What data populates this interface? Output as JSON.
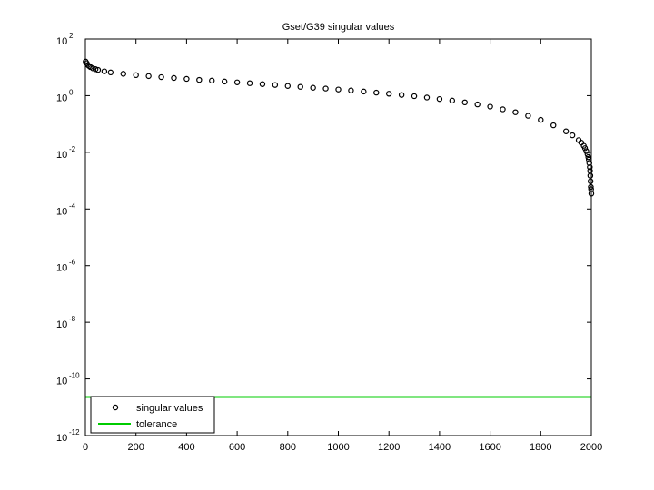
{
  "chart_data": {
    "type": "scatter",
    "title": "Gset/G39 singular values",
    "xlabel": "",
    "ylabel": "",
    "xlim": [
      0,
      2000
    ],
    "ylim": [
      1e-12,
      100
    ],
    "yscale": "log",
    "x_ticks": [
      "0",
      "200",
      "400",
      "600",
      "800",
      "1000",
      "1200",
      "1400",
      "1600",
      "1800",
      "2000"
    ],
    "y_ticks": [
      {
        "base": "10",
        "exp": "2"
      },
      {
        "base": "10",
        "exp": "0"
      },
      {
        "base": "10",
        "exp": "-2"
      },
      {
        "base": "10",
        "exp": "-4"
      },
      {
        "base": "10",
        "exp": "-6"
      },
      {
        "base": "10",
        "exp": "-8"
      },
      {
        "base": "10",
        "exp": "-10"
      },
      {
        "base": "10",
        "exp": "-12"
      }
    ],
    "grid": false,
    "legend_position": "bottom-left",
    "series": [
      {
        "name": "singular values",
        "marker": "circle",
        "color": "#000000",
        "points": [
          [
            1,
            16
          ],
          [
            5,
            14
          ],
          [
            10,
            12
          ],
          [
            15,
            11
          ],
          [
            20,
            10.2
          ],
          [
            30,
            9.2
          ],
          [
            40,
            8.6
          ],
          [
            50,
            8.1
          ],
          [
            75,
            7.2
          ],
          [
            100,
            6.6
          ],
          [
            150,
            5.9
          ],
          [
            200,
            5.3
          ],
          [
            250,
            4.9
          ],
          [
            300,
            4.5
          ],
          [
            350,
            4.2
          ],
          [
            400,
            3.9
          ],
          [
            450,
            3.6
          ],
          [
            500,
            3.4
          ],
          [
            550,
            3.15
          ],
          [
            600,
            2.95
          ],
          [
            650,
            2.75
          ],
          [
            700,
            2.55
          ],
          [
            750,
            2.38
          ],
          [
            800,
            2.2
          ],
          [
            850,
            2.05
          ],
          [
            900,
            1.9
          ],
          [
            950,
            1.78
          ],
          [
            1000,
            1.65
          ],
          [
            1050,
            1.52
          ],
          [
            1100,
            1.4
          ],
          [
            1150,
            1.28
          ],
          [
            1200,
            1.17
          ],
          [
            1250,
            1.06
          ],
          [
            1300,
            0.96
          ],
          [
            1350,
            0.86
          ],
          [
            1400,
            0.76
          ],
          [
            1450,
            0.67
          ],
          [
            1500,
            0.58
          ],
          [
            1550,
            0.49
          ],
          [
            1600,
            0.41
          ],
          [
            1650,
            0.33
          ],
          [
            1700,
            0.26
          ],
          [
            1750,
            0.195
          ],
          [
            1800,
            0.14
          ],
          [
            1850,
            0.09
          ],
          [
            1900,
            0.055
          ],
          [
            1925,
            0.04
          ],
          [
            1950,
            0.027
          ],
          [
            1960,
            0.022
          ],
          [
            1970,
            0.017
          ],
          [
            1975,
            0.014
          ],
          [
            1980,
            0.011
          ],
          [
            1985,
            0.0085
          ],
          [
            1988,
            0.0068
          ],
          [
            1990,
            0.0055
          ],
          [
            1992,
            0.0042
          ],
          [
            1994,
            0.003
          ],
          [
            1995,
            0.0022
          ],
          [
            1996,
            0.0015
          ],
          [
            1997,
            0.00095
          ],
          [
            1998,
            0.0006
          ],
          [
            1999,
            0.0005
          ],
          [
            2000,
            0.00035
          ]
        ]
      },
      {
        "name": "tolerance",
        "marker": "line",
        "color": "#00cc00",
        "points": [
          [
            0,
            2.3e-11
          ],
          [
            2000,
            2.3e-11
          ]
        ]
      }
    ]
  }
}
